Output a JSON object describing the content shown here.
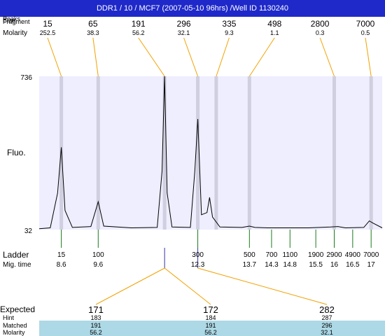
{
  "header": {
    "title": "DDR1 / 10 / MCF7 (2007-05-10 96hrs) /Well ID 1130240"
  },
  "row_labels": {
    "peak_size_stack": [
      "Peaks",
      "Size",
      "Fragment"
    ],
    "molarity": "Molarity",
    "fluo": "Fluo.",
    "ladder": "Ladder",
    "mig_time": "Mig. time",
    "expected": "Expected",
    "hint": "Hint",
    "matched": "Matched",
    "molarity_bottom": "Molarity"
  },
  "chart_data": {
    "type": "line",
    "y_ticks": [
      "736",
      "32"
    ],
    "ylim": [
      32,
      736
    ],
    "xlim": [
      8.0,
      17.3
    ],
    "peaks": [
      {
        "size": "15",
        "molarity": "252.5",
        "x": 8.6
      },
      {
        "size": "65",
        "molarity": "38.3",
        "x": 9.6
      },
      {
        "size": "191",
        "molarity": "56.2",
        "x": 11.4
      },
      {
        "size": "296",
        "molarity": "32.1",
        "x": 12.3
      },
      {
        "size": "335",
        "molarity": "9.3",
        "x": 12.8
      },
      {
        "size": "498",
        "molarity": "1.1",
        "x": 13.7
      },
      {
        "size": "2800",
        "molarity": "0.3",
        "x": 16.0
      },
      {
        "size": "7000",
        "molarity": "0.5",
        "x": 17.0
      }
    ],
    "trace": [
      [
        8.0,
        36
      ],
      [
        8.3,
        40
      ],
      [
        8.5,
        200
      ],
      [
        8.6,
        410
      ],
      [
        8.7,
        120
      ],
      [
        8.9,
        42
      ],
      [
        9.4,
        46
      ],
      [
        9.6,
        160
      ],
      [
        9.75,
        48
      ],
      [
        10.5,
        40
      ],
      [
        11.2,
        42
      ],
      [
        11.33,
        300
      ],
      [
        11.4,
        736
      ],
      [
        11.47,
        200
      ],
      [
        11.6,
        44
      ],
      [
        12.1,
        42
      ],
      [
        12.22,
        300
      ],
      [
        12.3,
        540
      ],
      [
        12.4,
        100
      ],
      [
        12.55,
        110
      ],
      [
        12.62,
        180
      ],
      [
        12.7,
        90
      ],
      [
        12.9,
        44
      ],
      [
        13.5,
        42
      ],
      [
        13.7,
        48
      ],
      [
        13.85,
        42
      ],
      [
        14.2,
        40
      ],
      [
        14.6,
        40
      ],
      [
        15.3,
        40
      ],
      [
        15.9,
        44
      ],
      [
        16.1,
        46
      ],
      [
        16.3,
        40
      ],
      [
        16.8,
        42
      ],
      [
        16.95,
        72
      ],
      [
        17.05,
        62
      ],
      [
        17.3,
        40
      ]
    ],
    "ladder": [
      {
        "size": "15",
        "time": "8.6"
      },
      {
        "size": "100",
        "time": "9.6"
      },
      {
        "size": "300",
        "time": "12.3"
      },
      {
        "size": "500",
        "time": "13.7"
      },
      {
        "size": "700",
        "time": "14.3"
      },
      {
        "size": "1100",
        "time": "14.8"
      },
      {
        "size": "1900",
        "time": "15.5"
      },
      {
        "size": "2900",
        "time": "16"
      },
      {
        "size": "4900",
        "time": "16.5"
      },
      {
        "size": "7000",
        "time": "17"
      }
    ],
    "expected": [
      {
        "value": "171",
        "hint": "183",
        "matched": "191",
        "molarity": "56.2",
        "color": "#dd0000",
        "source_time": 11.4
      },
      {
        "value": "172",
        "hint": "184",
        "matched": "191",
        "molarity": "56.2",
        "color": "#000000",
        "source_time": 11.4
      },
      {
        "value": "282",
        "hint": "287",
        "matched": "296",
        "molarity": "32.1",
        "color": "#dd0000",
        "source_time": 12.3
      }
    ],
    "colors": {
      "plot_bg": "#eeeeff",
      "band": "#cfcfe0",
      "leader": "#f2a100",
      "ladder_tick": "#1a7a1a",
      "trace": "#000000",
      "row_highlight": "#add8e6",
      "title_bg": "#1f29c9"
    }
  }
}
